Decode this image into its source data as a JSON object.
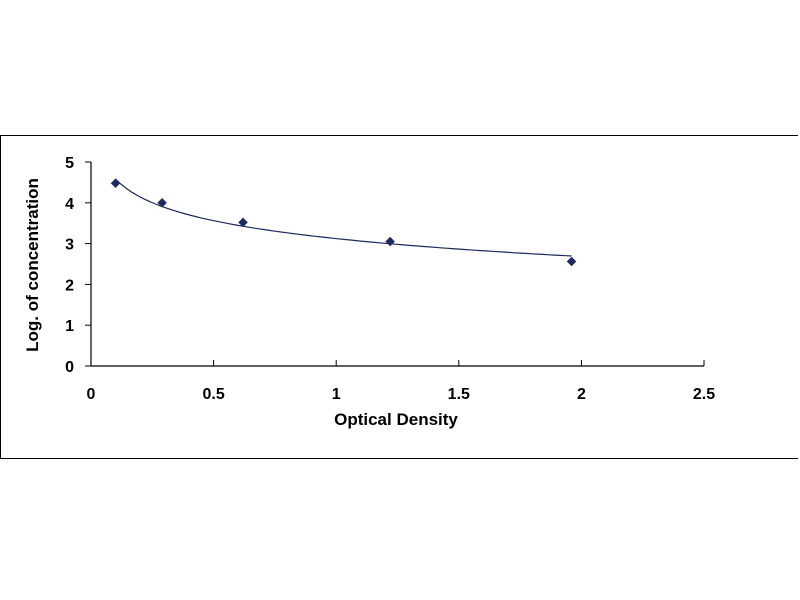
{
  "chart_data": {
    "type": "scatter",
    "xlabel": "Optical Density",
    "ylabel": "Log. of concentration",
    "xlim": [
      0,
      2.5
    ],
    "ylim": [
      0,
      5
    ],
    "xticks": [
      "0",
      "0.5",
      "1",
      "1.5",
      "2",
      "2.5"
    ],
    "yticks": [
      "0",
      "1",
      "2",
      "3",
      "4",
      "5"
    ],
    "x": [
      0.1,
      0.29,
      0.62,
      1.22,
      1.96
    ],
    "y": [
      4.48,
      4.0,
      3.52,
      3.05,
      2.56
    ],
    "trendline": "logarithmic",
    "grid": false,
    "legend": "none",
    "marker_color": "#1f2a5c",
    "line_color": "#1f2a5c"
  }
}
